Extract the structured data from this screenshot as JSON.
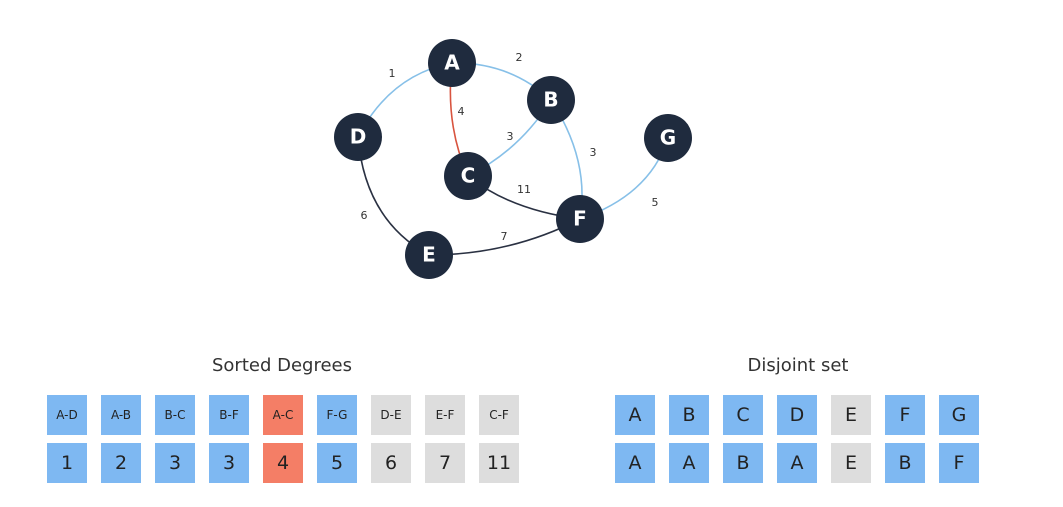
{
  "colors": {
    "node": "#1f2b3e",
    "edge_selected": "#87c0e8",
    "edge_current": "#d8543f",
    "edge_default": "#2a3142",
    "cell_selected": "#7eb8f2",
    "cell_current": "#f47e66",
    "cell_pending": "#dddddd"
  },
  "graph": {
    "nodes": [
      {
        "id": "A",
        "label": "A"
      },
      {
        "id": "B",
        "label": "B"
      },
      {
        "id": "C",
        "label": "C"
      },
      {
        "id": "D",
        "label": "D"
      },
      {
        "id": "E",
        "label": "E"
      },
      {
        "id": "F",
        "label": "F"
      },
      {
        "id": "G",
        "label": "G"
      }
    ],
    "edges": [
      {
        "id": "A-D",
        "weight": "1",
        "state": "selected"
      },
      {
        "id": "A-B",
        "weight": "2",
        "state": "selected"
      },
      {
        "id": "A-C",
        "weight": "4",
        "state": "current"
      },
      {
        "id": "B-C",
        "weight": "3",
        "state": "selected"
      },
      {
        "id": "B-F",
        "weight": "3",
        "state": "selected"
      },
      {
        "id": "C-F",
        "weight": "11",
        "state": "default"
      },
      {
        "id": "F-G",
        "weight": "5",
        "state": "selected"
      },
      {
        "id": "D-E",
        "weight": "6",
        "state": "default"
      },
      {
        "id": "E-F",
        "weight": "7",
        "state": "default"
      }
    ]
  },
  "sorted_degrees": {
    "title": "Sorted Degrees",
    "items": [
      {
        "edge": "A-D",
        "weight": "1",
        "state": "selected"
      },
      {
        "edge": "A-B",
        "weight": "2",
        "state": "selected"
      },
      {
        "edge": "B-C",
        "weight": "3",
        "state": "selected"
      },
      {
        "edge": "B-F",
        "weight": "3",
        "state": "selected"
      },
      {
        "edge": "A-C",
        "weight": "4",
        "state": "current"
      },
      {
        "edge": "F-G",
        "weight": "5",
        "state": "selected"
      },
      {
        "edge": "D-E",
        "weight": "6",
        "state": "pending"
      },
      {
        "edge": "E-F",
        "weight": "7",
        "state": "pending"
      },
      {
        "edge": "C-F",
        "weight": "11",
        "state": "pending"
      }
    ]
  },
  "disjoint_set": {
    "title": "Disjoint set",
    "items": [
      {
        "node": "A",
        "parent": "A",
        "state": "selected"
      },
      {
        "node": "B",
        "parent": "A",
        "state": "selected"
      },
      {
        "node": "C",
        "parent": "B",
        "state": "selected"
      },
      {
        "node": "D",
        "parent": "A",
        "state": "selected"
      },
      {
        "node": "E",
        "parent": "E",
        "state": "pending"
      },
      {
        "node": "F",
        "parent": "B",
        "state": "selected"
      },
      {
        "node": "G",
        "parent": "F",
        "state": "selected"
      }
    ]
  }
}
